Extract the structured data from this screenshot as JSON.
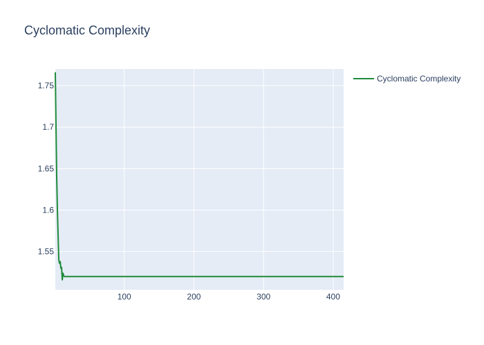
{
  "chart_data": {
    "type": "line",
    "title": "Cyclomatic Complexity",
    "xlabel": "",
    "ylabel": "",
    "xlim": [
      1,
      415
    ],
    "ylim": [
      1.504,
      1.77
    ],
    "x_ticks": [
      100,
      200,
      300,
      400
    ],
    "y_ticks": [
      1.55,
      1.6,
      1.65,
      1.7,
      1.75
    ],
    "grid": true,
    "legend_position": "top-right",
    "colors": {
      "plot_bg": "#e5ecf6",
      "grid": "#ffffff",
      "text": "#2a3f5f"
    },
    "series": [
      {
        "name": "Cyclomatic Complexity",
        "color": "#1f8a3a",
        "x": [
          1,
          2,
          3,
          4,
          5,
          6,
          7,
          8,
          9,
          10,
          11,
          12,
          13,
          14,
          15,
          16,
          18,
          20,
          25,
          30,
          50,
          100,
          150,
          200,
          250,
          300,
          350,
          400,
          415
        ],
        "y": [
          1.766,
          1.7,
          1.64,
          1.6,
          1.57,
          1.54,
          1.536,
          1.538,
          1.53,
          1.531,
          1.516,
          1.524,
          1.521,
          1.52,
          1.52,
          1.52,
          1.52,
          1.52,
          1.52,
          1.52,
          1.52,
          1.52,
          1.52,
          1.52,
          1.52,
          1.52,
          1.52,
          1.52,
          1.52
        ]
      }
    ]
  }
}
